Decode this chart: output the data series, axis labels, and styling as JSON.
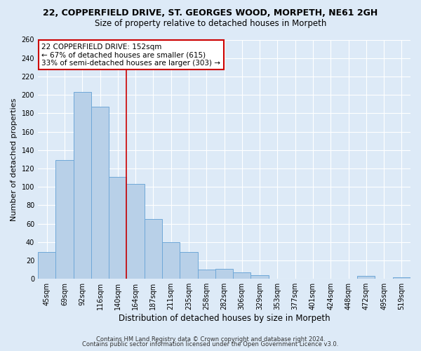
{
  "title": "22, COPPERFIELD DRIVE, ST. GEORGES WOOD, MORPETH, NE61 2GH",
  "subtitle": "Size of property relative to detached houses in Morpeth",
  "xlabel": "Distribution of detached houses by size in Morpeth",
  "ylabel": "Number of detached properties",
  "categories": [
    "45sqm",
    "69sqm",
    "92sqm",
    "116sqm",
    "140sqm",
    "164sqm",
    "187sqm",
    "211sqm",
    "235sqm",
    "258sqm",
    "282sqm",
    "306sqm",
    "329sqm",
    "353sqm",
    "377sqm",
    "401sqm",
    "424sqm",
    "448sqm",
    "472sqm",
    "495sqm",
    "519sqm"
  ],
  "values": [
    29,
    129,
    203,
    187,
    111,
    103,
    65,
    40,
    29,
    10,
    11,
    7,
    4,
    0,
    0,
    0,
    0,
    0,
    3,
    0,
    2
  ],
  "bar_color": "#b8d0e8",
  "bar_edge_color": "#6fa8d8",
  "highlight_line_index": 4.5,
  "highlight_line_color": "#cc0000",
  "annotation_text": "22 COPPERFIELD DRIVE: 152sqm\n← 67% of detached houses are smaller (615)\n33% of semi-detached houses are larger (303) →",
  "annotation_box_facecolor": "#ffffff",
  "annotation_box_edgecolor": "#cc0000",
  "ylim": [
    0,
    260
  ],
  "yticks": [
    0,
    20,
    40,
    60,
    80,
    100,
    120,
    140,
    160,
    180,
    200,
    220,
    240,
    260
  ],
  "bg_color": "#ddeaf7",
  "grid_color": "#ffffff",
  "title_fontsize": 9,
  "subtitle_fontsize": 8.5,
  "xlabel_fontsize": 8.5,
  "ylabel_fontsize": 8,
  "tick_fontsize": 7,
  "annotation_fontsize": 7.5,
  "footer_fontsize": 6,
  "footer_line1": "Contains HM Land Registry data © Crown copyright and database right 2024.",
  "footer_line2": "Contains public sector information licensed under the Open Government Licence v3.0."
}
